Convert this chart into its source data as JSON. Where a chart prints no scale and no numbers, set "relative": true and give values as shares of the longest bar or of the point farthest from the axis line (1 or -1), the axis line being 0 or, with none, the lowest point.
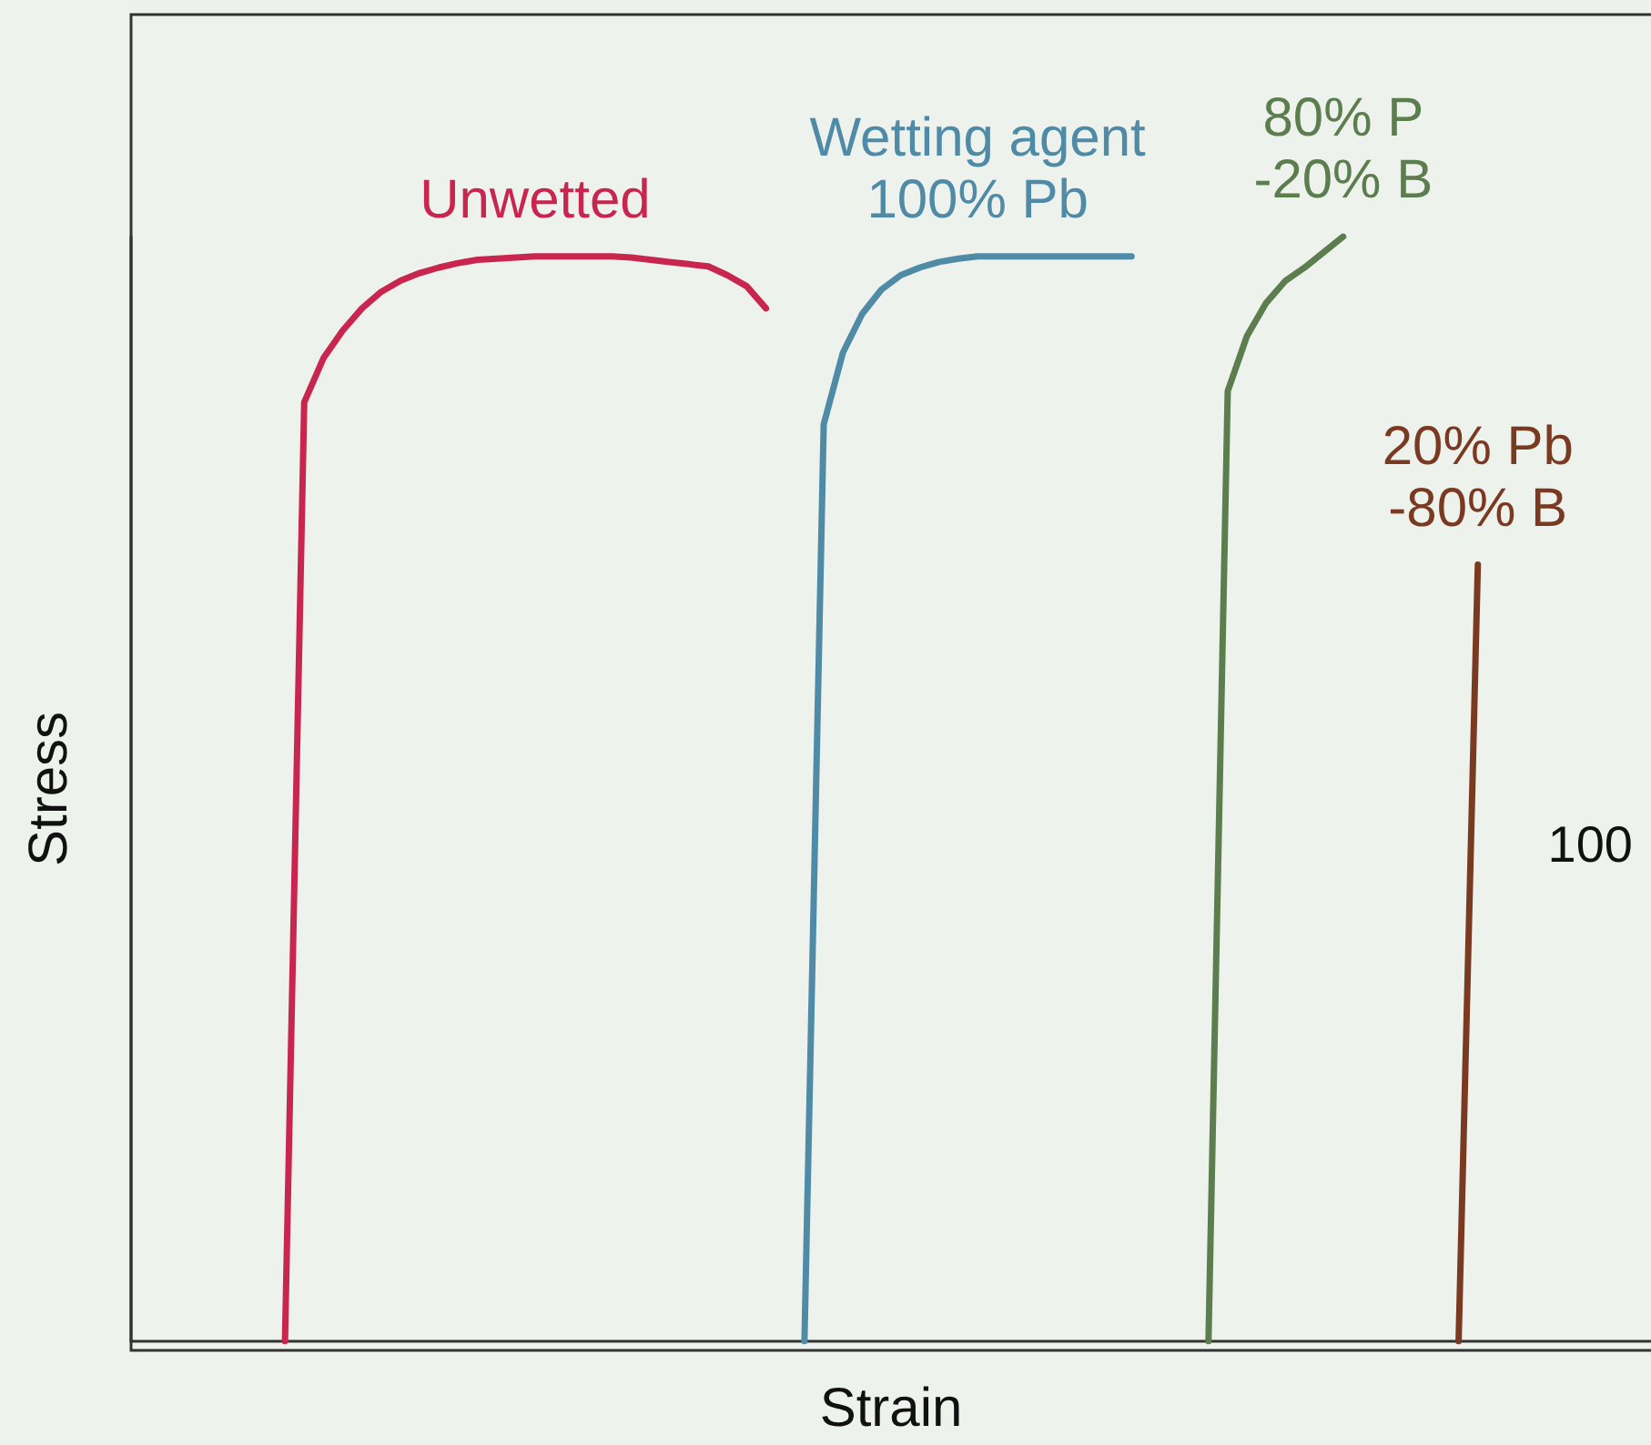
{
  "chart_data": {
    "type": "line",
    "relative": true,
    "xlabel": "Strain",
    "ylabel": "Stress",
    "tick_labels": false,
    "grid": false,
    "legend": false,
    "marker": "none",
    "line_style": "solid",
    "categories": [
      null,
      null,
      null,
      null,
      null,
      null,
      null,
      null,
      null,
      null,
      null,
      null,
      null,
      null,
      null,
      null,
      null,
      null,
      null,
      null,
      null,
      null,
      null,
      null,
      null,
      null,
      null,
      null,
      null,
      null,
      null,
      null,
      null,
      null,
      null,
      null,
      null,
      null,
      null,
      null,
      null,
      null,
      null,
      null,
      null,
      null,
      null,
      null,
      null,
      null,
      null,
      null,
      null,
      null,
      null,
      null,
      null,
      null,
      null,
      null,
      null,
      null,
      null,
      null,
      null,
      null,
      null,
      null,
      null,
      null,
      null,
      null,
      null,
      null,
      null,
      null,
      null,
      null,
      null,
      null
    ],
    "series": [
      {
        "name": "Unwetted",
        "color": "#c8254f",
        "values": [
          null,
          null,
          null,
          null,
          null,
          null,
          null,
          null,
          0,
          0.85,
          0.89,
          0.915,
          0.935,
          0.95,
          0.96,
          0.967,
          0.972,
          0.976,
          0.979,
          0.98,
          0.981,
          0.982,
          0.982,
          0.982,
          0.982,
          0.982,
          0.981,
          0.979,
          0.977,
          0.975,
          0.973,
          0.965,
          0.955,
          0.935,
          null,
          null,
          null,
          null,
          null,
          null,
          null,
          null,
          null,
          null,
          null,
          null,
          null,
          null,
          null,
          null,
          null,
          null,
          null,
          null,
          null,
          null,
          null,
          null,
          null,
          null,
          null,
          null,
          null,
          null,
          null,
          null,
          null,
          null,
          null,
          null,
          null,
          null,
          null,
          null,
          null,
          null,
          null,
          null,
          null,
          null
        ]
      },
      {
        "name": "Wetting agent\n100% Pb",
        "color": "#4f8aa6",
        "values": [
          null,
          null,
          null,
          null,
          null,
          null,
          null,
          null,
          null,
          null,
          null,
          null,
          null,
          null,
          null,
          null,
          null,
          null,
          null,
          null,
          null,
          null,
          null,
          null,
          null,
          null,
          null,
          null,
          null,
          null,
          null,
          null,
          null,
          null,
          null,
          0,
          0.83,
          0.895,
          0.93,
          0.952,
          0.965,
          0.972,
          0.977,
          0.98,
          0.982,
          0.982,
          0.982,
          0.982,
          0.982,
          0.982,
          0.982,
          0.982,
          0.982,
          null,
          null,
          null,
          null,
          null,
          null,
          null,
          null,
          null,
          null,
          null,
          null,
          null,
          null,
          null,
          null,
          null,
          null,
          null,
          null,
          null,
          null,
          null,
          null,
          null,
          null,
          null
        ]
      },
      {
        "name": "80% P\n-20% B",
        "color": "#5c7d4e",
        "values": [
          null,
          null,
          null,
          null,
          null,
          null,
          null,
          null,
          null,
          null,
          null,
          null,
          null,
          null,
          null,
          null,
          null,
          null,
          null,
          null,
          null,
          null,
          null,
          null,
          null,
          null,
          null,
          null,
          null,
          null,
          null,
          null,
          null,
          null,
          null,
          null,
          null,
          null,
          null,
          null,
          null,
          null,
          null,
          null,
          null,
          null,
          null,
          null,
          null,
          null,
          null,
          null,
          null,
          null,
          null,
          null,
          0,
          0.86,
          0.91,
          0.94,
          0.96,
          0.972,
          0.986,
          1,
          null,
          null,
          null,
          null,
          null,
          null,
          null,
          null,
          null,
          null,
          null,
          null,
          null,
          null,
          null,
          null
        ]
      },
      {
        "name": "20% Pb\n-80% B",
        "color": "#7a3a22",
        "values": [
          null,
          null,
          null,
          null,
          null,
          null,
          null,
          null,
          null,
          null,
          null,
          null,
          null,
          null,
          null,
          null,
          null,
          null,
          null,
          null,
          null,
          null,
          null,
          null,
          null,
          null,
          null,
          null,
          null,
          null,
          null,
          null,
          null,
          null,
          null,
          null,
          null,
          null,
          null,
          null,
          null,
          null,
          null,
          null,
          null,
          null,
          null,
          null,
          null,
          null,
          null,
          null,
          null,
          null,
          null,
          null,
          null,
          null,
          null,
          null,
          null,
          null,
          null,
          null,
          null,
          null,
          null,
          null,
          null,
          0,
          0.703,
          null,
          null,
          null,
          null,
          null,
          null,
          null,
          null,
          null
        ]
      }
    ],
    "annotations": [
      "100"
    ]
  }
}
